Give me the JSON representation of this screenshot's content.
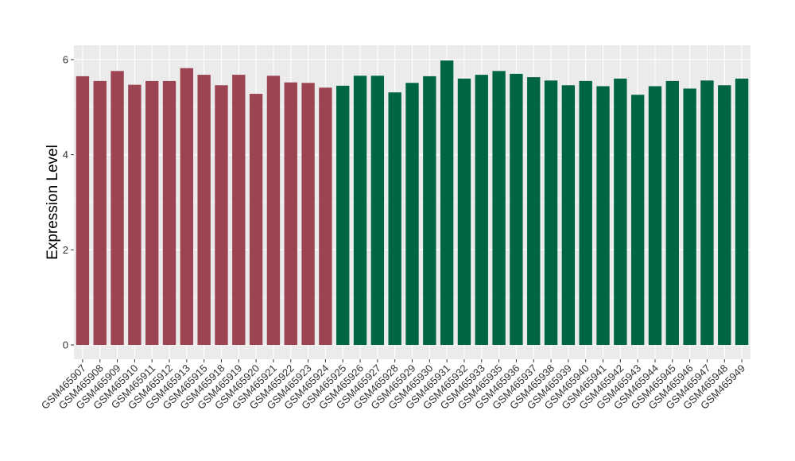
{
  "chart_data": {
    "type": "bar",
    "ylabel": "Expression Level",
    "xlabel": "",
    "ylim": [
      -0.3,
      6.3
    ],
    "yticks": [
      0,
      2,
      4,
      6
    ],
    "y_tick_labels": [
      "0",
      "2",
      "4",
      "6"
    ],
    "grid": true,
    "panel_background": "#EBEBEB",
    "colors": {
      "group_1": "#9C4452",
      "group_2": "#006543"
    },
    "categories": [
      "GSM465907",
      "GSM465908",
      "GSM465909",
      "GSM465910",
      "GSM465911",
      "GSM465912",
      "GSM465913",
      "GSM465915",
      "GSM465918",
      "GSM465919",
      "GSM465920",
      "GSM465921",
      "GSM465922",
      "GSM465923",
      "GSM465924",
      "GSM465925",
      "GSM465926",
      "GSM465927",
      "GSM465928",
      "GSM465929",
      "GSM465930",
      "GSM465931",
      "GSM465932",
      "GSM465933",
      "GSM465935",
      "GSM465936",
      "GSM465937",
      "GSM465938",
      "GSM465939",
      "GSM465940",
      "GSM465941",
      "GSM465942",
      "GSM465943",
      "GSM465944",
      "GSM465945",
      "GSM465946",
      "GSM465947",
      "GSM465948",
      "GSM465949"
    ],
    "values": [
      5.65,
      5.55,
      5.76,
      5.47,
      5.55,
      5.55,
      5.82,
      5.68,
      5.46,
      5.68,
      5.28,
      5.66,
      5.52,
      5.51,
      5.41,
      5.45,
      5.66,
      5.66,
      5.31,
      5.51,
      5.65,
      5.98,
      5.6,
      5.68,
      5.76,
      5.7,
      5.63,
      5.56,
      5.46,
      5.55,
      5.44,
      5.6,
      5.26,
      5.44,
      5.55,
      5.39,
      5.56,
      5.46,
      5.6
    ],
    "groups": [
      "group_1",
      "group_1",
      "group_1",
      "group_1",
      "group_1",
      "group_1",
      "group_1",
      "group_1",
      "group_1",
      "group_1",
      "group_1",
      "group_1",
      "group_1",
      "group_1",
      "group_1",
      "group_2",
      "group_2",
      "group_2",
      "group_2",
      "group_2",
      "group_2",
      "group_2",
      "group_2",
      "group_2",
      "group_2",
      "group_2",
      "group_2",
      "group_2",
      "group_2",
      "group_2",
      "group_2",
      "group_2",
      "group_2",
      "group_2",
      "group_2",
      "group_2",
      "group_2",
      "group_2",
      "group_2"
    ]
  }
}
